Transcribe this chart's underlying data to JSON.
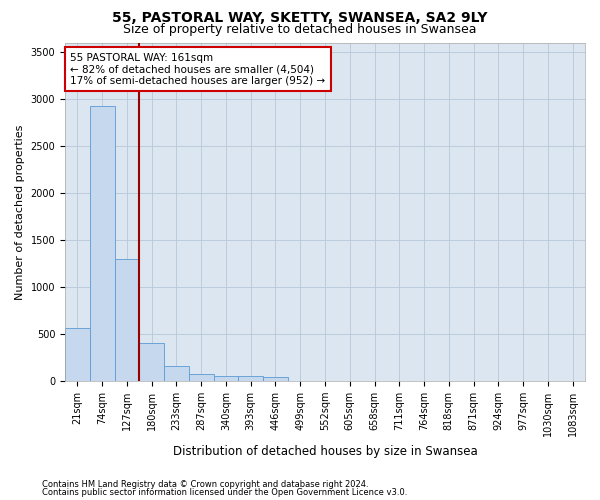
{
  "title": "55, PASTORAL WAY, SKETTY, SWANSEA, SA2 9LY",
  "subtitle": "Size of property relative to detached houses in Swansea",
  "xlabel": "Distribution of detached houses by size in Swansea",
  "ylabel": "Number of detached properties",
  "categories": [
    "21sqm",
    "74sqm",
    "127sqm",
    "180sqm",
    "233sqm",
    "287sqm",
    "340sqm",
    "393sqm",
    "446sqm",
    "499sqm",
    "552sqm",
    "605sqm",
    "658sqm",
    "711sqm",
    "764sqm",
    "818sqm",
    "871sqm",
    "924sqm",
    "977sqm",
    "1030sqm",
    "1083sqm"
  ],
  "values": [
    570,
    2920,
    1300,
    410,
    160,
    75,
    55,
    50,
    40,
    0,
    0,
    0,
    0,
    0,
    0,
    0,
    0,
    0,
    0,
    0,
    0
  ],
  "bar_color": "#c5d8ee",
  "bar_edge_color": "#5b9bd5",
  "grid_color": "#b8c8da",
  "background_color": "#dce6f1",
  "vline_color": "#990000",
  "annotation_text": "55 PASTORAL WAY: 161sqm\n← 82% of detached houses are smaller (4,504)\n17% of semi-detached houses are larger (952) →",
  "annotation_box_color": "#ffffff",
  "annotation_box_edge": "#cc0000",
  "ylim": [
    0,
    3600
  ],
  "yticks": [
    0,
    500,
    1000,
    1500,
    2000,
    2500,
    3000,
    3500
  ],
  "footer_line1": "Contains HM Land Registry data © Crown copyright and database right 2024.",
  "footer_line2": "Contains public sector information licensed under the Open Government Licence v3.0.",
  "title_fontsize": 10,
  "subtitle_fontsize": 9,
  "tick_fontsize": 7,
  "ylabel_fontsize": 8,
  "xlabel_fontsize": 8.5,
  "annotation_fontsize": 7.5
}
